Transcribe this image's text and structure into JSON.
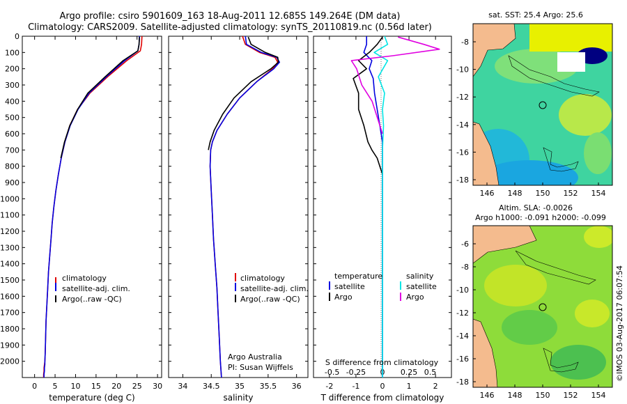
{
  "header": {
    "line1": "Argo profile: csiro 5901609_163 18-Aug-2011 12.685S 149.264E (DM data)",
    "line2": "Climatology: CARS2009. Satellite-adjusted climatology: synTS_20110819.nc (0.56d later)"
  },
  "colors": {
    "climatology": "#e00000",
    "satellite": "#0000e0",
    "argo": "#000000",
    "satellite_salinity": "#00e5e5",
    "argo_salinity": "#e000e0",
    "land": "#f4bb8e"
  },
  "chart_data": [
    {
      "id": "temperature",
      "type": "line",
      "xlabel": "temperature (deg C)",
      "ylabel": "",
      "xlim": [
        -3,
        31
      ],
      "ylim": [
        2100,
        0
      ],
      "xticks": [
        0,
        5,
        10,
        15,
        20,
        25,
        30
      ],
      "yticks": [
        0,
        100,
        200,
        300,
        400,
        500,
        600,
        700,
        800,
        900,
        1000,
        1100,
        1200,
        1300,
        1400,
        1500,
        1600,
        1700,
        1800,
        1900,
        2000
      ],
      "legend": [
        "climatology",
        "satellite-adj. clim.",
        "Argo(..raw -QC)"
      ],
      "legend_placement": "lower-left",
      "series": [
        {
          "name": "climatology",
          "x": [
            26.2,
            26.1,
            25.8,
            22.5,
            17.8,
            13.5,
            10.5,
            8.6,
            7.4,
            6.5,
            5.8,
            5.2,
            4.7,
            4.3,
            4.0,
            3.7,
            3.4,
            3.2,
            3.0,
            2.8,
            2.7,
            2.6,
            2.5,
            2.4,
            2.3,
            2.3,
            2.2,
            2.2
          ],
          "y": [
            0,
            50,
            90,
            150,
            250,
            350,
            450,
            550,
            650,
            750,
            850,
            950,
            1050,
            1150,
            1250,
            1350,
            1450,
            1550,
            1650,
            1750,
            1850,
            1950,
            2000,
            2020,
            2040,
            2060,
            2080,
            2100
          ]
        },
        {
          "name": "satellite-adj. clim.",
          "x": [
            25.6,
            25.5,
            25.2,
            22.0,
            17.5,
            13.3,
            10.6,
            8.7,
            7.4,
            6.5,
            5.8,
            5.2,
            4.7,
            4.3,
            4.0,
            3.7,
            3.4,
            3.2,
            3.0,
            2.8,
            2.7,
            2.6,
            2.5,
            2.5,
            2.4,
            2.4,
            2.3,
            2.3
          ],
          "y": [
            0,
            50,
            90,
            150,
            250,
            350,
            450,
            550,
            650,
            750,
            850,
            950,
            1050,
            1150,
            1250,
            1350,
            1450,
            1550,
            1650,
            1750,
            1850,
            1950,
            2000,
            2020,
            2040,
            2060,
            2080,
            2100
          ]
        },
        {
          "name": "Argo(..raw -QC)",
          "x": [
            25.6,
            25.5,
            25.2,
            21.6,
            17.2,
            13.0,
            10.5,
            8.6,
            7.3,
            6.4
          ],
          "y": [
            5,
            50,
            90,
            150,
            250,
            350,
            450,
            550,
            650,
            750
          ]
        }
      ]
    },
    {
      "id": "salinity",
      "type": "line",
      "xlabel": "salinity",
      "ylabel": "",
      "xlim": [
        33.75,
        36.2
      ],
      "ylim": [
        2100,
        0
      ],
      "xticks": [
        34,
        34.5,
        35,
        35.5,
        36
      ],
      "legend": [
        "climatology",
        "satellite-adj. clim.",
        "Argo(..raw -QC)"
      ],
      "legend_placement": "lower-right",
      "annotation": [
        "Argo Australia",
        "PI: Susan Wijffels"
      ],
      "series": [
        {
          "name": "climatology",
          "x": [
            35.05,
            35.1,
            35.35,
            35.62,
            35.67,
            35.58,
            35.3,
            35.0,
            34.78,
            34.6,
            34.52,
            34.49,
            34.48,
            34.5,
            34.52,
            34.54,
            34.57,
            34.6,
            34.62,
            34.64,
            34.66,
            34.67,
            34.68
          ],
          "y": [
            0,
            50,
            100,
            130,
            160,
            200,
            280,
            380,
            480,
            580,
            650,
            700,
            800,
            950,
            1100,
            1250,
            1400,
            1550,
            1700,
            1850,
            2000,
            2050,
            2100
          ]
        },
        {
          "name": "satellite-adj. clim.",
          "x": [
            35.1,
            35.12,
            35.38,
            35.65,
            35.7,
            35.6,
            35.3,
            35.0,
            34.78,
            34.6,
            34.52,
            34.49,
            34.48,
            34.5,
            34.52,
            34.54,
            34.57,
            34.6,
            34.62,
            34.64,
            34.66,
            34.67,
            34.68
          ],
          "y": [
            0,
            50,
            100,
            130,
            160,
            200,
            280,
            380,
            480,
            580,
            650,
            700,
            800,
            950,
            1100,
            1250,
            1400,
            1550,
            1700,
            1850,
            2000,
            2050,
            2100
          ]
        },
        {
          "name": "Argo(..raw -QC)",
          "x": [
            35.15,
            35.2,
            35.45,
            35.67,
            35.68,
            35.55,
            35.2,
            34.9,
            34.7,
            34.55,
            34.48,
            34.45
          ],
          "y": [
            5,
            50,
            100,
            130,
            160,
            200,
            280,
            380,
            480,
            580,
            650,
            700
          ]
        }
      ]
    },
    {
      "id": "difference",
      "type": "line",
      "xlabel": "T difference from climatology",
      "x2label": "S difference from climatology",
      "xlim": [
        -2.6,
        2.6
      ],
      "ylim": [
        2100,
        0
      ],
      "xticks": [
        -2,
        -1,
        0,
        1,
        2
      ],
      "x2ticks": [
        "-0.5",
        "-0.25",
        "0",
        "0.25",
        "0.5"
      ],
      "legend_left_title": "temperature",
      "legend_right_title": "salinity",
      "legend_left": [
        "satellite",
        "Argo"
      ],
      "legend_right": [
        "satellite",
        "Argo"
      ],
      "series": [
        {
          "name": "temperature satellite",
          "x": [
            -0.6,
            -0.6,
            -0.7,
            -0.4,
            -0.5,
            -0.35,
            -0.3,
            -0.2,
            -0.1,
            0.0,
            0.0,
            0.0,
            0.0,
            0.0
          ],
          "y": [
            0,
            50,
            100,
            150,
            200,
            260,
            350,
            450,
            550,
            650,
            750,
            850,
            1000,
            2100
          ]
        },
        {
          "name": "temperature Argo",
          "x": [
            0.0,
            -0.2,
            -0.5,
            -0.9,
            -0.6,
            -1.1,
            -0.9,
            -0.9,
            -0.7,
            -0.55,
            -0.4,
            -0.2,
            -0.1,
            0.0
          ],
          "y": [
            5,
            50,
            100,
            150,
            200,
            260,
            350,
            450,
            550,
            650,
            700,
            750,
            800,
            850
          ]
        },
        {
          "name": "salinity satellite",
          "x": [
            0.02,
            0.05,
            -0.08,
            0.05,
            -0.04,
            0.02,
            0.0,
            0.01,
            0.0,
            0.0
          ],
          "y": [
            0,
            50,
            100,
            150,
            250,
            350,
            450,
            550,
            700,
            2100
          ]
        },
        {
          "name": "salinity Argo",
          "x": [
            0.15,
            0.4,
            0.55,
            0.1,
            -0.3,
            -0.25,
            -0.2,
            -0.1,
            -0.05,
            0.0
          ],
          "y": [
            5,
            50,
            80,
            120,
            150,
            200,
            300,
            400,
            500,
            600
          ]
        }
      ]
    }
  ],
  "maps": {
    "sst": {
      "title": "sat. SST: 25.4  Argo: 25.6",
      "xticks": [
        "146",
        "148",
        "150",
        "152",
        "154"
      ],
      "yticks": [
        "-8",
        "-10",
        "-12",
        "-14",
        "-16",
        "-18"
      ]
    },
    "sla": {
      "title1": "Altim. SLA: -0.0026",
      "title2": "Argo h1000: -0.091  h2000: -0.099",
      "xticks": [
        "146",
        "148",
        "150",
        "152",
        "154"
      ],
      "yticks": [
        "-6",
        "-8",
        "-10",
        "-12",
        "-14",
        "-16",
        "-18"
      ]
    }
  },
  "footer": {
    "credit": "©IMOS 03-Aug-2017 06:07:54"
  }
}
